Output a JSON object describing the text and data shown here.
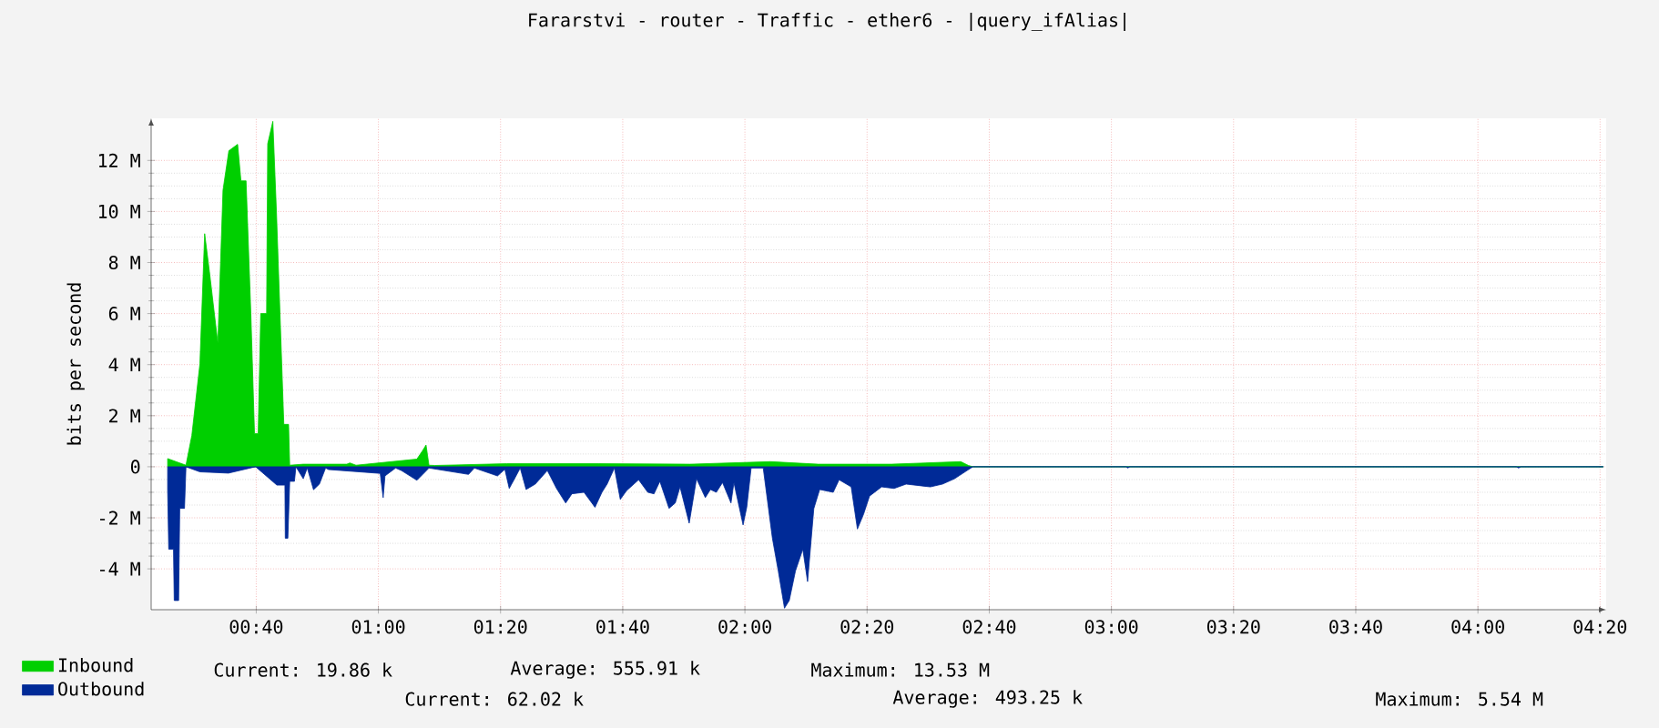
{
  "chart_data": {
    "type": "area",
    "title": "Fararstvi - router - Traffic - ether6 - |query_ifAlias|",
    "ylabel": "bits per second",
    "xlim": [
      0.38,
      4.35
    ],
    "ylim": [
      -5.6,
      13.65
    ],
    "xticks": [
      {
        "value": 0.6667,
        "label": "00:40"
      },
      {
        "value": 1,
        "label": "01:00"
      },
      {
        "value": 1.3333,
        "label": "01:20"
      },
      {
        "value": 1.6667,
        "label": "01:40"
      },
      {
        "value": 2,
        "label": "02:00"
      },
      {
        "value": 2.3333,
        "label": "02:20"
      },
      {
        "value": 2.6667,
        "label": "02:40"
      },
      {
        "value": 3,
        "label": "03:00"
      },
      {
        "value": 3.3333,
        "label": "03:20"
      },
      {
        "value": 3.6667,
        "label": "03:40"
      },
      {
        "value": 4,
        "label": "04:00"
      },
      {
        "value": 4.3333,
        "label": "04:20"
      }
    ],
    "yticks": [
      {
        "value": -4,
        "label": "-4 M"
      },
      {
        "value": -2,
        "label": "-2 M"
      },
      0,
      {
        "value": 2,
        "label": "2 M"
      },
      {
        "value": 4,
        "label": "4 M"
      },
      {
        "value": 6,
        "label": "6 M"
      },
      {
        "value": 8,
        "label": "8 M"
      },
      {
        "value": 10,
        "label": "10 M"
      },
      {
        "value": 12,
        "label": "12 M"
      }
    ],
    "grid": true,
    "legend": "bottom",
    "series": [
      {
        "name": "Inbound",
        "color": "#00cf00",
        "x": [
          0.425,
          0.475,
          0.491,
          0.513,
          0.526,
          0.539,
          0.562,
          0.576,
          0.592,
          0.616,
          0.625,
          0.639,
          0.652,
          0.662,
          0.672,
          0.679,
          0.695,
          0.698,
          0.712,
          0.722,
          0.742,
          0.755,
          0.758,
          0.795,
          0.914,
          0.922,
          0.939,
          1.105,
          1.121,
          1.13,
          1.138,
          1.154,
          1.35,
          1.6,
          1.85,
          2.07,
          2.2,
          2.4,
          2.589,
          2.61,
          2.622,
          4.342
        ],
        "values": [
          0.32,
          0.06,
          1.23,
          4.03,
          9.13,
          7.64,
          4.84,
          10.83,
          12.38,
          12.63,
          11.2,
          11.2,
          6.0,
          1.3,
          1.3,
          6.0,
          6.0,
          12.65,
          13.53,
          9.94,
          1.66,
          1.66,
          0.06,
          0.1,
          0.1,
          0.15,
          0.06,
          0.3,
          0.64,
          0.85,
          0.06,
          0.05,
          0.12,
          0.12,
          0.1,
          0.2,
          0.1,
          0.1,
          0.2,
          0.05,
          0,
          0
        ]
      },
      {
        "name": "Outbound",
        "color": "#002a97",
        "x": [
          0.425,
          0.428,
          0.441,
          0.443,
          0.455,
          0.458,
          0.471,
          0.475,
          0.513,
          0.591,
          0.665,
          0.723,
          0.745,
          0.746,
          0.753,
          0.758,
          0.771,
          0.775,
          0.795,
          0.806,
          0.823,
          0.839,
          0.856,
          0.864,
          1.005,
          1.013,
          1.018,
          1.047,
          1.063,
          1.105,
          1.121,
          1.138,
          1.246,
          1.262,
          1.325,
          1.345,
          1.357,
          1.37,
          1.387,
          1.403,
          1.428,
          1.461,
          1.486,
          1.511,
          1.528,
          1.561,
          1.591,
          1.61,
          1.624,
          1.644,
          1.66,
          1.677,
          1.71,
          1.735,
          1.752,
          1.768,
          1.793,
          1.81,
          1.823,
          1.848,
          1.868,
          1.892,
          1.906,
          1.922,
          1.939,
          1.962,
          1.97,
          1.995,
          2.005,
          2.017,
          2.05,
          2.075,
          2.091,
          2.108,
          2.121,
          2.138,
          2.158,
          2.171,
          2.188,
          2.204,
          2.241,
          2.257,
          2.29,
          2.307,
          2.324,
          2.34,
          2.373,
          2.407,
          2.44,
          2.506,
          2.539,
          2.572,
          2.606,
          2.622,
          3.04,
          3.045,
          3.05,
          4.105,
          4.111,
          4.117,
          4.342
        ],
        "values": [
          -0.9,
          -3.23,
          -3.23,
          -5.24,
          -5.24,
          -1.63,
          -1.63,
          0,
          -0.2,
          -0.25,
          0,
          -0.72,
          -0.72,
          -2.8,
          -2.8,
          -0.57,
          -0.57,
          0,
          -0.47,
          -0.05,
          -0.9,
          -0.68,
          -0.05,
          -0.11,
          -0.26,
          -1.21,
          -0.36,
          -0.05,
          -0.15,
          -0.53,
          -0.3,
          -0.05,
          -0.3,
          -0.05,
          -0.36,
          -0.1,
          -0.85,
          -0.51,
          -0.05,
          -0.89,
          -0.68,
          -0.15,
          -0.85,
          -1.42,
          -1.06,
          -1.0,
          -1.59,
          -1.0,
          -0.68,
          -0.05,
          -1.28,
          -0.94,
          -0.51,
          -1.0,
          -1.06,
          -0.57,
          -1.63,
          -1.42,
          -0.79,
          -2.21,
          -0.47,
          -1.21,
          -0.89,
          -1.0,
          -0.62,
          -1.42,
          -0.62,
          -2.28,
          -1.59,
          -0.05,
          -0.05,
          -2.8,
          -4.08,
          -5.54,
          -5.24,
          -4.08,
          -3.23,
          -4.5,
          -1.64,
          -0.89,
          -1.0,
          -0.51,
          -0.79,
          -2.44,
          -1.85,
          -1.15,
          -0.79,
          -0.85,
          -0.68,
          -0.79,
          -0.68,
          -0.47,
          -0.15,
          0,
          0,
          -0.05,
          0,
          0,
          -0.05,
          0,
          0
        ]
      }
    ],
    "annotations": [
      "Current: 19.86 k",
      "Average: 555.91 k",
      "Maximum: 13.53 M",
      "Current: 62.02 k",
      "Average: 493.25 k",
      "Maximum: 5.54 M"
    ]
  }
}
